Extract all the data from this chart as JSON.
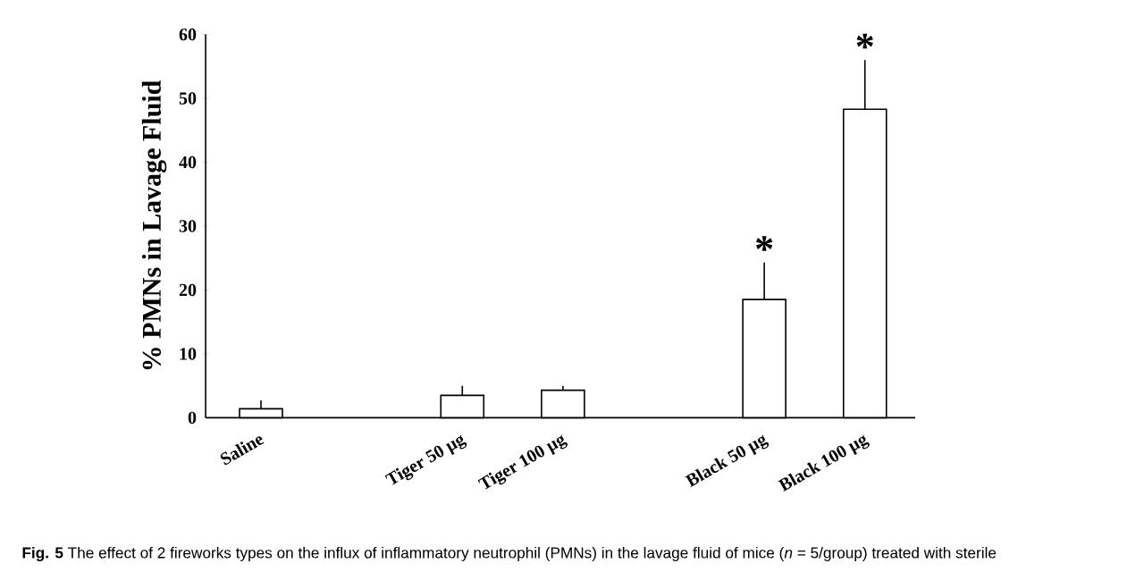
{
  "chart_data": {
    "type": "bar",
    "categories": [
      "Saline",
      null,
      "Tiger 50 µg",
      "Tiger 100 µg",
      null,
      "Black 50 µg",
      "Black 100 µg"
    ],
    "values": [
      1.4,
      null,
      3.5,
      4.3,
      null,
      18.5,
      48.3
    ],
    "errors": [
      1.3,
      null,
      1.5,
      0.7,
      null,
      5.8,
      7.7
    ],
    "color": "#ffffff",
    "ylabel": "% PMNs in Lavage Fluid",
    "ylim": [
      0,
      60
    ],
    "yticks": [
      0,
      10,
      20,
      30,
      40,
      50,
      60
    ],
    "annotations": [
      "*",
      "*",
      "**Fig. 5** The effect of 2 fireworks types on the influx of inflammatory neutrophil (PMNs) in the lavage fluid of mice (*n* = 5/group) treated with sterile"
    ],
    "grid": false
  }
}
